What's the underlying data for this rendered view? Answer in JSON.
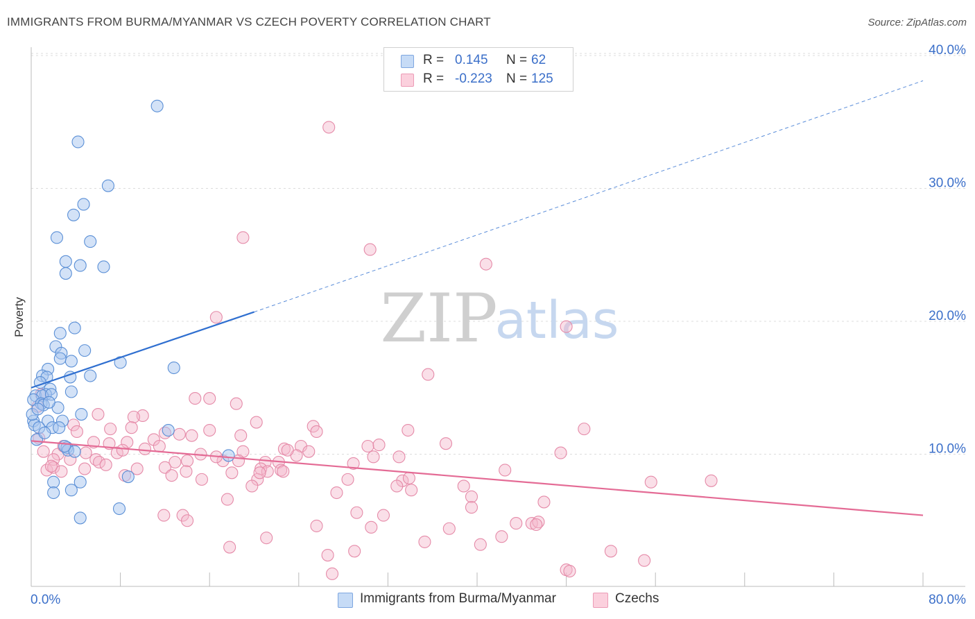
{
  "header": {
    "title": "IMMIGRANTS FROM BURMA/MYANMAR VS CZECH POVERTY CORRELATION CHART",
    "source": "Source: ZipAtlas.com"
  },
  "legend_top": {
    "rows": [
      {
        "r_label": "R =",
        "r_value": "0.145",
        "n_label": "N =",
        "n_value": "62",
        "color": "#a7c5ef"
      },
      {
        "r_label": "R =",
        "r_value": "-0.223",
        "n_label": "N =",
        "n_value": "125",
        "color": "#f5b8cb"
      }
    ]
  },
  "legend_bottom": {
    "items": [
      {
        "label": "Immigrants from Burma/Myanmar",
        "color": "#a7c5ef"
      },
      {
        "label": "Czechs",
        "color": "#f5b8cb"
      }
    ]
  },
  "watermark": {
    "zip": "ZIP",
    "atlas": "atlas"
  },
  "chart_data": {
    "type": "scatter",
    "title": "IMMIGRANTS FROM BURMA/MYANMAR VS CZECH POVERTY CORRELATION CHART",
    "xlabel": "",
    "ylabel": "Poverty",
    "xlim": [
      0,
      80
    ],
    "ylim": [
      0,
      40
    ],
    "x_tick_labels": [
      "0.0%",
      "80.0%"
    ],
    "y_tick_labels": [
      "10.0%",
      "20.0%",
      "30.0%",
      "40.0%"
    ],
    "y_ticks": [
      10,
      20,
      30,
      40
    ],
    "grid": true,
    "legend_position": "top-center",
    "colors": {
      "blue_fill": "#a7c5ef",
      "blue_stroke": "#5a8fd6",
      "blue_line": "#2f6fd0",
      "pink_fill": "#f5b8cb",
      "pink_stroke": "#e58aa8",
      "pink_line": "#e46b95",
      "axis_text": "#3b6fc9"
    },
    "series": [
      {
        "name": "Immigrants from Burma/Myanmar",
        "trend": {
          "x0": 0,
          "y0": 15.0,
          "x1": 20,
          "y1": 20.7,
          "extend_to_x": 80,
          "extend_y": 38.1
        },
        "points": [
          [
            11.3,
            36.2
          ],
          [
            4.2,
            33.5
          ],
          [
            6.9,
            30.2
          ],
          [
            4.7,
            28.8
          ],
          [
            3.8,
            28.0
          ],
          [
            2.3,
            26.3
          ],
          [
            5.3,
            26.0
          ],
          [
            3.1,
            24.5
          ],
          [
            4.4,
            24.2
          ],
          [
            6.5,
            24.1
          ],
          [
            3.1,
            23.6
          ],
          [
            3.9,
            19.5
          ],
          [
            2.6,
            19.1
          ],
          [
            2.2,
            18.1
          ],
          [
            4.8,
            17.8
          ],
          [
            2.7,
            17.6
          ],
          [
            2.6,
            17.2
          ],
          [
            3.6,
            17.0
          ],
          [
            8.0,
            16.9
          ],
          [
            12.8,
            16.5
          ],
          [
            1.5,
            16.4
          ],
          [
            1.0,
            15.9
          ],
          [
            1.4,
            15.8
          ],
          [
            5.3,
            15.9
          ],
          [
            3.5,
            15.8
          ],
          [
            0.8,
            15.4
          ],
          [
            1.7,
            14.9
          ],
          [
            0.4,
            14.4
          ],
          [
            1.3,
            14.5
          ],
          [
            1.0,
            14.4
          ],
          [
            1.8,
            14.5
          ],
          [
            3.6,
            14.7
          ],
          [
            0.2,
            14.1
          ],
          [
            0.9,
            13.8
          ],
          [
            1.1,
            13.7
          ],
          [
            2.4,
            13.5
          ],
          [
            4.5,
            13.0
          ],
          [
            0.2,
            12.5
          ],
          [
            0.3,
            12.2
          ],
          [
            1.5,
            12.5
          ],
          [
            2.8,
            12.5
          ],
          [
            0.7,
            12.0
          ],
          [
            1.9,
            12.0
          ],
          [
            2.5,
            12.0
          ],
          [
            12.3,
            11.8
          ],
          [
            0.5,
            11.1
          ],
          [
            3.2,
            10.5
          ],
          [
            3.3,
            10.3
          ],
          [
            3.9,
            10.2
          ],
          [
            17.7,
            9.9
          ],
          [
            8.7,
            8.3
          ],
          [
            2.0,
            7.9
          ],
          [
            4.4,
            7.9
          ],
          [
            3.6,
            7.3
          ],
          [
            2.0,
            7.1
          ],
          [
            7.9,
            5.9
          ],
          [
            4.4,
            5.2
          ],
          [
            0.1,
            13.0
          ],
          [
            0.6,
            13.4
          ],
          [
            1.2,
            11.6
          ],
          [
            1.6,
            13.9
          ],
          [
            3.0,
            10.6
          ]
        ]
      },
      {
        "name": "Czechs",
        "trend": {
          "x0": 0,
          "y0": 11.0,
          "x1": 80,
          "y1": 5.4
        },
        "points": [
          [
            26.7,
            34.6
          ],
          [
            30.4,
            25.4
          ],
          [
            40.8,
            24.3
          ],
          [
            19.0,
            26.3
          ],
          [
            16.6,
            20.3
          ],
          [
            48.0,
            19.6
          ],
          [
            35.6,
            16.0
          ],
          [
            14.7,
            14.2
          ],
          [
            16.0,
            14.2
          ],
          [
            18.4,
            13.8
          ],
          [
            0.6,
            13.6
          ],
          [
            10.0,
            12.9
          ],
          [
            9.2,
            12.8
          ],
          [
            20.2,
            12.4
          ],
          [
            3.8,
            12.2
          ],
          [
            7.1,
            11.9
          ],
          [
            9.0,
            12.0
          ],
          [
            25.3,
            12.1
          ],
          [
            25.6,
            11.7
          ],
          [
            33.8,
            11.8
          ],
          [
            49.6,
            11.9
          ],
          [
            4.1,
            11.7
          ],
          [
            12.0,
            11.6
          ],
          [
            16.0,
            11.8
          ],
          [
            18.8,
            11.4
          ],
          [
            7.0,
            10.8
          ],
          [
            8.6,
            10.9
          ],
          [
            0.7,
            11.2
          ],
          [
            11.0,
            11.1
          ],
          [
            2.4,
            10.0
          ],
          [
            4.9,
            10.1
          ],
          [
            7.7,
            10.1
          ],
          [
            8.2,
            10.3
          ],
          [
            10.2,
            10.4
          ],
          [
            15.2,
            10.0
          ],
          [
            19.0,
            10.2
          ],
          [
            22.7,
            10.4
          ],
          [
            24.2,
            10.6
          ],
          [
            30.2,
            10.6
          ],
          [
            31.2,
            10.7
          ],
          [
            37.2,
            10.8
          ],
          [
            47.5,
            10.1
          ],
          [
            23.8,
            9.9
          ],
          [
            1.1,
            10.2
          ],
          [
            2.0,
            9.6
          ],
          [
            3.5,
            9.6
          ],
          [
            5.8,
            9.6
          ],
          [
            6.1,
            9.4
          ],
          [
            12.9,
            9.4
          ],
          [
            14.0,
            9.5
          ],
          [
            17.2,
            9.5
          ],
          [
            18.6,
            9.5
          ],
          [
            21.0,
            9.4
          ],
          [
            22.2,
            9.4
          ],
          [
            28.9,
            9.3
          ],
          [
            30.7,
            9.8
          ],
          [
            33.0,
            9.8
          ],
          [
            1.4,
            8.8
          ],
          [
            2.0,
            9.0
          ],
          [
            2.7,
            8.7
          ],
          [
            4.8,
            8.9
          ],
          [
            6.7,
            9.2
          ],
          [
            9.5,
            8.9
          ],
          [
            12.0,
            9.0
          ],
          [
            13.9,
            8.7
          ],
          [
            18.0,
            8.6
          ],
          [
            20.6,
            8.9
          ],
          [
            21.2,
            8.7
          ],
          [
            22.4,
            8.8
          ],
          [
            22.6,
            8.7
          ],
          [
            42.5,
            8.8
          ],
          [
            8.4,
            8.4
          ],
          [
            12.6,
            8.4
          ],
          [
            15.3,
            8.1
          ],
          [
            20.3,
            8.1
          ],
          [
            28.4,
            8.1
          ],
          [
            33.3,
            8.0
          ],
          [
            33.9,
            8.2
          ],
          [
            55.6,
            7.9
          ],
          [
            61.0,
            8.0
          ],
          [
            19.8,
            7.6
          ],
          [
            32.8,
            7.6
          ],
          [
            34.1,
            7.3
          ],
          [
            38.8,
            7.6
          ],
          [
            27.4,
            7.1
          ],
          [
            39.5,
            6.8
          ],
          [
            17.6,
            6.6
          ],
          [
            39.5,
            6.0
          ],
          [
            46.0,
            6.4
          ],
          [
            11.9,
            5.4
          ],
          [
            13.6,
            5.4
          ],
          [
            14.0,
            5.0
          ],
          [
            29.2,
            5.6
          ],
          [
            31.6,
            5.4
          ],
          [
            43.5,
            4.8
          ],
          [
            44.9,
            4.8
          ],
          [
            45.5,
            4.9
          ],
          [
            45.3,
            4.7
          ],
          [
            25.6,
            4.6
          ],
          [
            30.5,
            4.5
          ],
          [
            37.5,
            4.4
          ],
          [
            42.2,
            3.8
          ],
          [
            21.1,
            3.7
          ],
          [
            35.3,
            3.4
          ],
          [
            40.3,
            3.2
          ],
          [
            17.8,
            3.0
          ],
          [
            29.0,
            2.7
          ],
          [
            52.0,
            2.7
          ],
          [
            26.6,
            2.4
          ],
          [
            55.0,
            2.0
          ],
          [
            48.0,
            1.3
          ],
          [
            48.3,
            1.2
          ],
          [
            27.0,
            1.0
          ],
          [
            6.0,
            13.0
          ],
          [
            0.9,
            14.5
          ],
          [
            16.6,
            9.8
          ],
          [
            11.5,
            10.6
          ],
          [
            24.9,
            10.2
          ],
          [
            14.4,
            11.4
          ],
          [
            2.9,
            10.6
          ],
          [
            5.6,
            10.9
          ],
          [
            13.3,
            11.5
          ],
          [
            23.0,
            10.3
          ],
          [
            20.5,
            8.6
          ],
          [
            1.8,
            9.1
          ]
        ]
      }
    ]
  }
}
